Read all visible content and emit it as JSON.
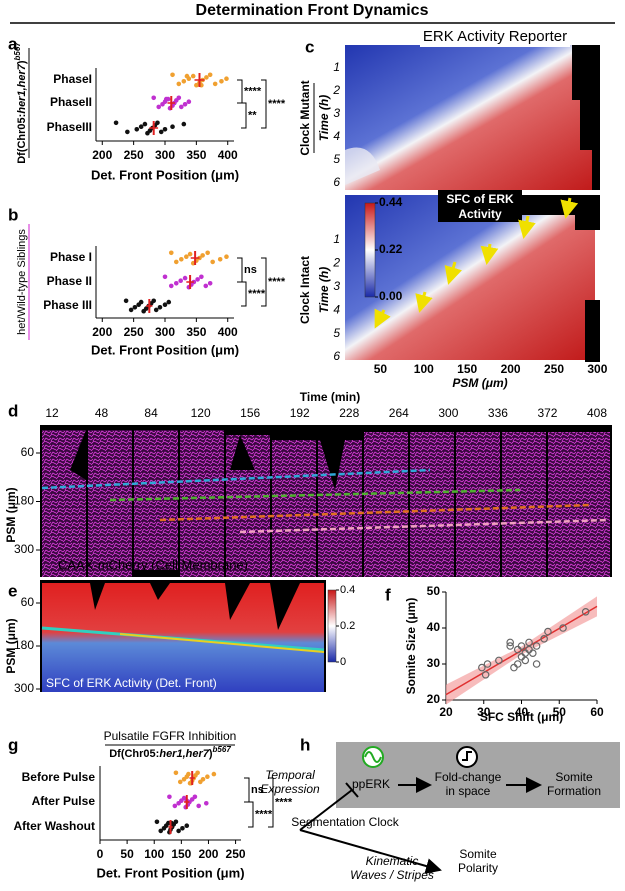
{
  "title": "Determination Front Dynamics",
  "chart_data": [
    {
      "type": "strip",
      "panel": "a",
      "categories": [
        "PhaseI",
        "PhaseII",
        "PhaseIII"
      ],
      "groups": [
        {
          "color": "#f0a030",
          "values": [
            312,
            322,
            330,
            338,
            345,
            350,
            355,
            360,
            366,
            372,
            380,
            390,
            398,
            335,
            358
          ],
          "mean": 355,
          "error": 8
        },
        {
          "color": "#c030d0",
          "values": [
            282,
            290,
            296,
            300,
            305,
            308,
            312,
            315,
            318,
            322,
            326,
            332,
            338,
            302
          ],
          "mean": 310,
          "error": 6
        },
        {
          "color": "#111111",
          "values": [
            222,
            240,
            255,
            262,
            268,
            272,
            276,
            280,
            284,
            288,
            294,
            300,
            312,
            330
          ],
          "mean": 282,
          "error": 7
        }
      ],
      "xlim": [
        190,
        410
      ],
      "xticks": [
        200,
        250,
        300,
        350,
        400
      ],
      "xlabel": "Det. Front Position (μm)",
      "ylabel_parts": [
        "Df(Chr05:",
        "her1,her7",
        ")",
        "b567"
      ],
      "annotations": [
        {
          "text": "****",
          "pair": [
            0,
            1
          ]
        },
        {
          "text": "**",
          "pair": [
            1,
            2
          ]
        },
        {
          "text": "****",
          "pair": [
            0,
            2
          ]
        }
      ]
    },
    {
      "type": "strip",
      "panel": "b",
      "categories": [
        "Phase I",
        "Phase II",
        "Phase III"
      ],
      "groups": [
        {
          "color": "#f0a030",
          "values": [
            310,
            318,
            326,
            334,
            340,
            345,
            350,
            355,
            360,
            368,
            376,
            388,
            398
          ],
          "mean": 348,
          "error": 7
        },
        {
          "color": "#c030d0",
          "values": [
            300,
            310,
            318,
            325,
            332,
            338,
            342,
            346,
            352,
            358,
            365,
            372
          ],
          "mean": 340,
          "error": 6
        },
        {
          "color": "#111111",
          "values": [
            238,
            246,
            252,
            258,
            262,
            266,
            270,
            274,
            278,
            282,
            286,
            292,
            300,
            306
          ],
          "mean": 275,
          "error": 5
        }
      ],
      "xlim": [
        190,
        410
      ],
      "xticks": [
        200,
        250,
        300,
        350,
        400
      ],
      "xlabel": "Det. Front Position (μm)",
      "ylabel": "het/Wild-type Siblings",
      "ylabel_color": "#d020d0",
      "annotations": [
        {
          "text": "ns",
          "pair": [
            0,
            1
          ]
        },
        {
          "text": "****",
          "pair": [
            1,
            2
          ]
        },
        {
          "text": "****",
          "pair": [
            0,
            2
          ]
        }
      ]
    },
    {
      "type": "scatter",
      "panel": "f",
      "x": [
        29.5,
        30.5,
        31,
        34,
        37,
        38,
        39,
        39,
        40,
        40,
        41,
        41,
        42,
        42,
        43,
        44,
        44,
        46,
        47,
        51,
        57,
        37
      ],
      "values": [
        29,
        27,
        30,
        31,
        35,
        29,
        30,
        34,
        35,
        32,
        31,
        33,
        34,
        36,
        33,
        35,
        30,
        37,
        39,
        40,
        44.5,
        36
      ],
      "color": "#666666",
      "fit": {
        "x": [
          20,
          60
        ],
        "y": [
          21.5,
          46
        ],
        "color": "#e03030"
      },
      "xlim": [
        20,
        60
      ],
      "xticks": [
        20,
        30,
        40,
        50,
        60
      ],
      "ylim": [
        20,
        50
      ],
      "yticks": [
        20,
        30,
        40,
        50
      ],
      "xlabel": "SFC Shift (μm)",
      "ylabel": "Somite Size (μm)"
    },
    {
      "type": "strip",
      "panel": "g",
      "title": "Pulsatile  FGFR Inhibition",
      "subtitle_parts": [
        "Df(Chr05:",
        "her1,her7",
        ")",
        "b567"
      ],
      "categories": [
        "Before Pulse",
        "After Pulse",
        "After Washout"
      ],
      "groups": [
        {
          "color": "#f0a030",
          "values": [
            140,
            148,
            155,
            160,
            163,
            166,
            170,
            173,
            176,
            180,
            185,
            190,
            198,
            210,
            168
          ],
          "mean": 170,
          "error": 5
        },
        {
          "color": "#c030d0",
          "values": [
            128,
            138,
            145,
            150,
            155,
            158,
            162,
            165,
            170,
            175,
            182,
            196,
            160
          ],
          "mean": 160,
          "error": 5
        },
        {
          "color": "#111111",
          "values": [
            105,
            112,
            118,
            122,
            126,
            128,
            130,
            133,
            136,
            140,
            145,
            152,
            160,
            132
          ],
          "mean": 130,
          "error": 4
        }
      ],
      "xlim": [
        0,
        260
      ],
      "xticks": [
        0,
        50,
        100,
        150,
        200,
        250
      ],
      "xlabel": "Det. Front Position (μm)",
      "annotations": [
        {
          "text": "ns",
          "pair": [
            0,
            1
          ]
        },
        {
          "text": "****",
          "pair": [
            1,
            2
          ]
        },
        {
          "text": "****",
          "pair": [
            0,
            2
          ]
        }
      ]
    }
  ],
  "panels": {
    "c": {
      "label": "c",
      "title": "ERK Activity Reporter",
      "top_label": "Clock Mutant",
      "bottom_label": "Clock Intact",
      "time_label": "Time (h)",
      "top_time_ticks": [
        1,
        2,
        3,
        4,
        5,
        6
      ],
      "bottom_time_ticks": [
        1,
        2,
        3,
        4,
        5,
        6
      ],
      "colorbar_title": [
        "SFC of ERK",
        "Activity"
      ],
      "colorbar_ticks": [
        0.44,
        0.22,
        {
          "value": 0,
          "label": "0.00"
        }
      ],
      "xticks": [
        50,
        100,
        150,
        200,
        250,
        300
      ],
      "xlabel": "PSM (μm)"
    },
    "d": {
      "label": "d",
      "time_label": "Time (min)",
      "times": [
        12,
        48,
        84,
        120,
        156,
        192,
        228,
        264,
        300,
        336,
        372,
        408
      ],
      "yticks": [
        60,
        180,
        300
      ],
      "ylabel": "PSM (μm)",
      "caption": "CAAX-mCherry (Cell Membrane)"
    },
    "e": {
      "label": "e",
      "colorbar_ticks": [
        0.4,
        0.2,
        0
      ],
      "yticks": [
        60,
        180,
        300
      ],
      "ylabel": "PSM (μm)",
      "caption": "SFC of ERK Activity (Det. Front)"
    },
    "h": {
      "label": "h",
      "temporal": [
        "Temporal",
        "Expression"
      ],
      "pperk": "ppERK",
      "fold": [
        "Fold-change",
        "in space"
      ],
      "formation": [
        "Somite",
        "Formation"
      ],
      "clock": "Segmentation Clock",
      "kinematic": [
        "Kinematic",
        "Waves / Stripes"
      ],
      "polarity": [
        "Somite",
        "Polarity"
      ]
    }
  }
}
